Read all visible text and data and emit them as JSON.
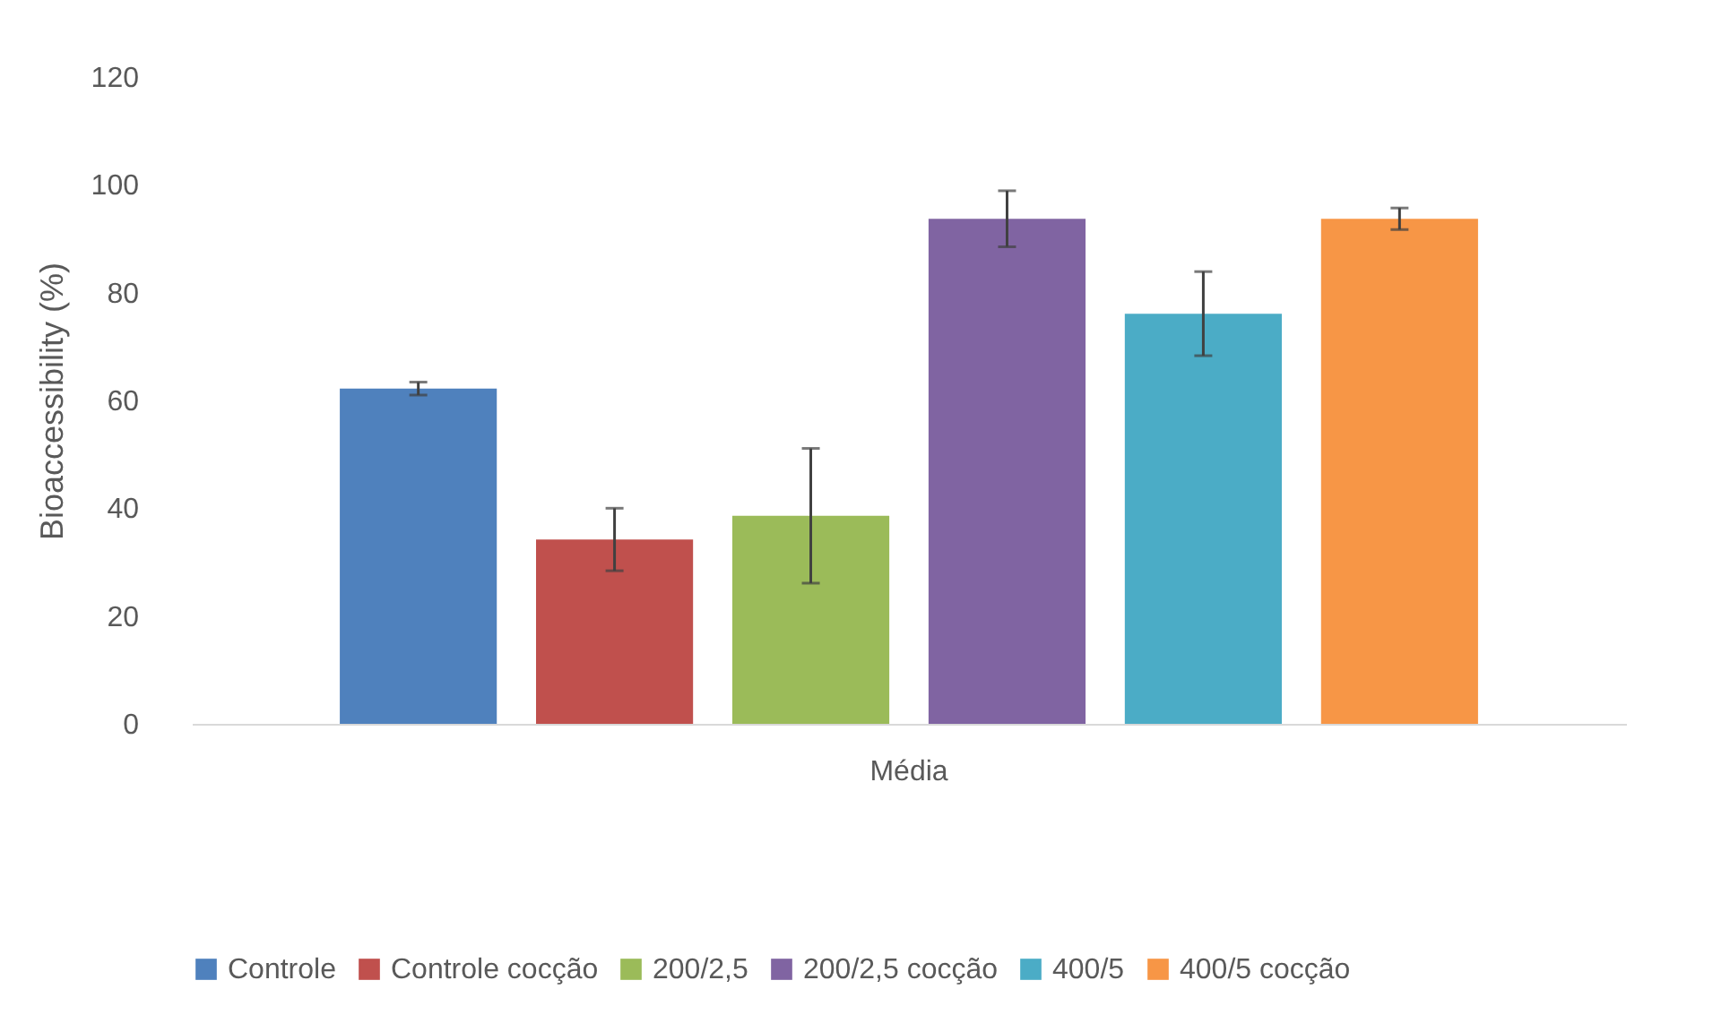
{
  "chart_data": {
    "type": "bar",
    "ylabel": "Bioaccessibility (%)",
    "categories": [
      "Média"
    ],
    "series": [
      {
        "name": "Controle",
        "color": "#4f81bd",
        "values": [
          62.2
        ],
        "errors": [
          1.2
        ]
      },
      {
        "name": "Controle cocção",
        "color": "#c0504d",
        "values": [
          34.2
        ],
        "errors": [
          5.8
        ]
      },
      {
        "name": "200/2,5",
        "color": "#9bbb59",
        "values": [
          38.6
        ],
        "errors": [
          12.5
        ]
      },
      {
        "name": "200/2,5 cocção",
        "color": "#8064a2",
        "values": [
          93.7
        ],
        "errors": [
          5.2
        ]
      },
      {
        "name": "400/5",
        "color": "#4bacc6",
        "values": [
          76.1
        ],
        "errors": [
          7.8
        ]
      },
      {
        "name": "400/5 cocção",
        "color": "#f79646",
        "values": [
          93.7
        ],
        "errors": [
          2
        ]
      }
    ],
    "ylim": [
      0,
      120
    ],
    "yticks": [
      0,
      20,
      40,
      60,
      80,
      100,
      120
    ],
    "grid": false,
    "legend": "bottom"
  }
}
